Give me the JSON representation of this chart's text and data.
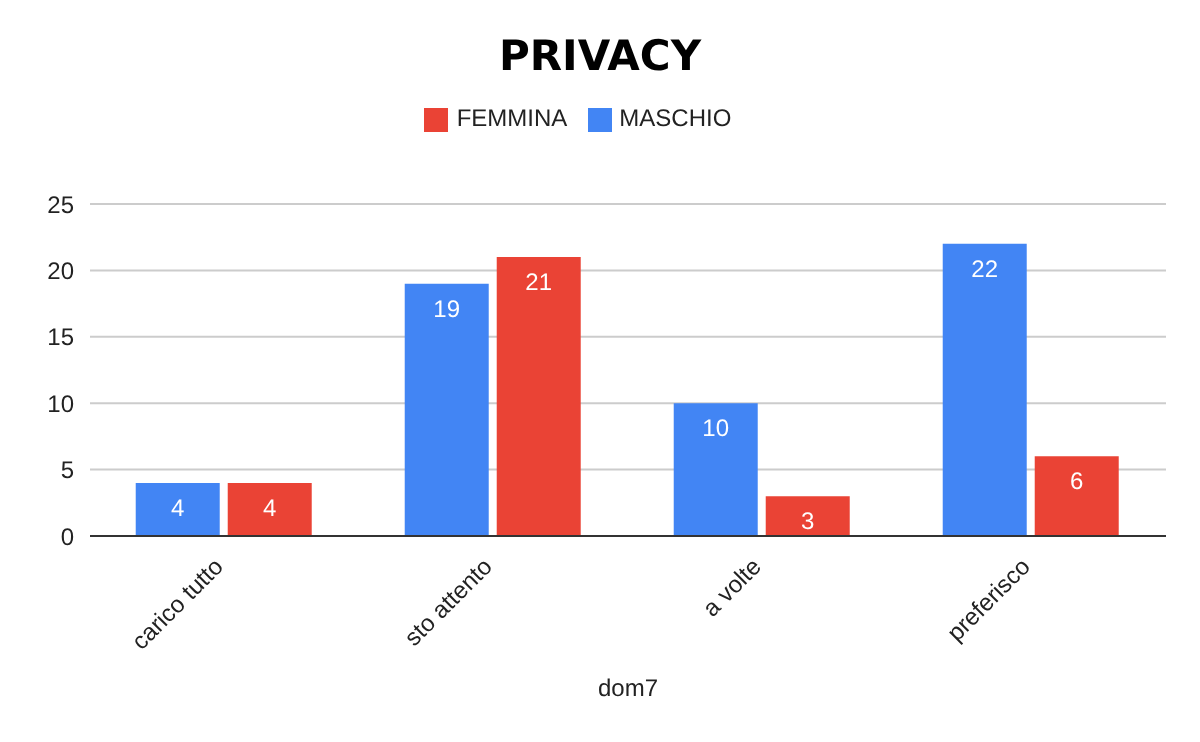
{
  "chart_data": {
    "type": "bar",
    "title": "PRIVACY",
    "xlabel": "dom7",
    "categories": [
      "carico tutto",
      "sto attento",
      "a volte",
      "preferisco"
    ],
    "series": [
      {
        "name": "MASCHIO",
        "color": "#4285f4",
        "values": [
          4,
          19,
          10,
          22
        ]
      },
      {
        "name": "FEMMINA",
        "color": "#ea4335",
        "values": [
          4,
          21,
          3,
          6
        ]
      }
    ],
    "ylim": [
      0,
      25
    ],
    "yticks": [
      0,
      5,
      10,
      15,
      20,
      25
    ],
    "grid": "y",
    "legend": "top",
    "data_labels": true
  }
}
